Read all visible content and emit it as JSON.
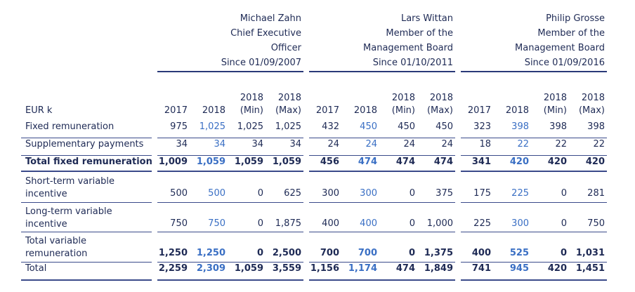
{
  "members": [
    {
      "name": "Michael Zahn",
      "role": [
        "Chief Executive",
        "Officer"
      ],
      "since": "Since 01/09/2007"
    },
    {
      "name": "Lars Wittan",
      "role": [
        "Member of the",
        "Management Board"
      ],
      "since": "Since 01/10/2011"
    },
    {
      "name": "Philip Grosse",
      "role": [
        "Member of the",
        "Management Board"
      ],
      "since": "Since 01/09/2016"
    }
  ],
  "unit_label": "EUR k",
  "columns": [
    {
      "top": "",
      "bottom": "2017"
    },
    {
      "top": "",
      "bottom": "2018"
    },
    {
      "top": "2018",
      "bottom": "(Min)"
    },
    {
      "top": "2018",
      "bottom": "(Max)"
    }
  ],
  "rows": [
    {
      "label": [
        "Fixed remuneration"
      ],
      "bold": false,
      "values": [
        "975",
        "1,025",
        "1,025",
        "1,025",
        "432",
        "450",
        "450",
        "450",
        "323",
        "398",
        "398",
        "398"
      ]
    },
    {
      "label": [
        "Supplementary payments"
      ],
      "bold": false,
      "values": [
        "34",
        "34",
        "34",
        "34",
        "24",
        "24",
        "24",
        "24",
        "18",
        "22",
        "22",
        "22"
      ]
    },
    {
      "label": [
        "Total fixed remuneration"
      ],
      "bold": true,
      "values": [
        "1,009",
        "1,059",
        "1,059",
        "1,059",
        "456",
        "474",
        "474",
        "474",
        "341",
        "420",
        "420",
        "420"
      ]
    },
    {
      "label": [
        "Short-term variable",
        "incentive"
      ],
      "bold": false,
      "values": [
        "500",
        "500",
        "0",
        "625",
        "300",
        "300",
        "0",
        "375",
        "175",
        "225",
        "0",
        "281"
      ]
    },
    {
      "label": [
        "Long-term variable",
        "incentive"
      ],
      "bold": false,
      "values": [
        "750",
        "750",
        "0",
        "1,875",
        "400",
        "400",
        "0",
        "1,000",
        "225",
        "300",
        "0",
        "750"
      ]
    },
    {
      "label": [
        "Total variable",
        "remuneration"
      ],
      "bold": true,
      "values": [
        "1,250",
        "1,250",
        "0",
        "2,500",
        "700",
        "700",
        "0",
        "1,375",
        "400",
        "525",
        "0",
        "1,031"
      ]
    },
    {
      "label": [
        "Total"
      ],
      "bold": true,
      "values": [
        "2,259",
        "2,309",
        "1,059",
        "3,559",
        "1,156",
        "1,174",
        "474",
        "1,849",
        "741",
        "945",
        "420",
        "1,451"
      ]
    }
  ],
  "colors": {
    "text": "#1e2a55",
    "highlight": "#3a6fc4",
    "rule": "#3a4a8a"
  }
}
